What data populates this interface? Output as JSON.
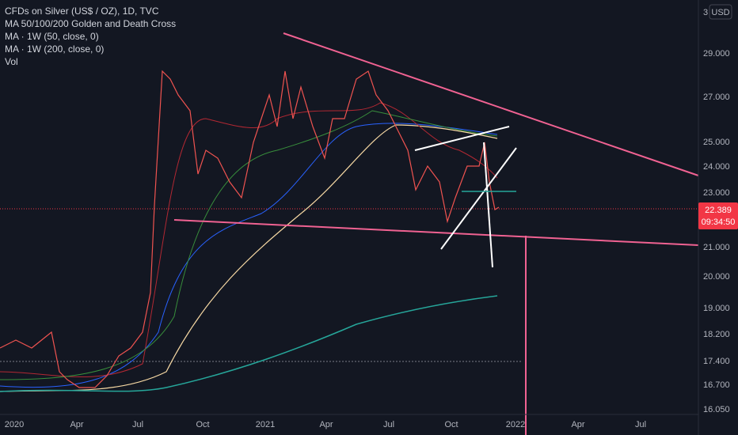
{
  "legend": [
    "CFDs on Silver (US$ / OZ), 1D, TVC",
    "MA 50/100/200 Golden and Death Cross",
    "MA · 1W (50, close, 0)",
    "MA · 1W (200, close, 0)",
    "Vol"
  ],
  "scale_mode": "3",
  "currency": "USD",
  "price_axis": [
    "29.000",
    "27.000",
    "25.000",
    "24.000",
    "23.000",
    "21.000",
    "20.000",
    "19.000",
    "18.200",
    "17.400",
    "16.700",
    "16.050"
  ],
  "time_axis": [
    "2020",
    "Apr",
    "Jul",
    "Oct",
    "2021",
    "Apr",
    "Jul",
    "Oct",
    "2022",
    "Apr",
    "Jul"
  ],
  "last_price": {
    "price": "22.389",
    "countdown": "09:34:50"
  }
}
